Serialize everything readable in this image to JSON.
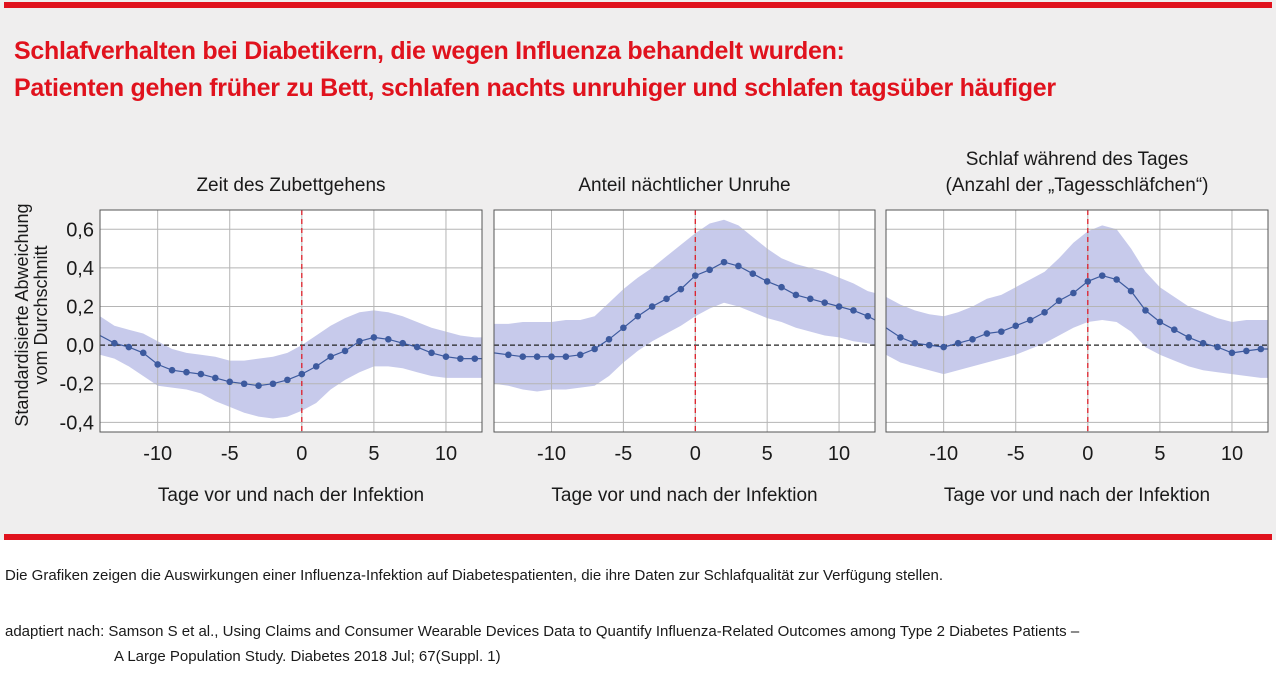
{
  "title": {
    "line1": "Schlafverhalten bei Diabetikern, die wegen Influenza behandelt wurden:",
    "line2": "Patienten gehen früher zu Bett, schlafen nachts unruhiger und schlafen tagsüber häufiger"
  },
  "ylabel": {
    "line1": "Standardisierte Abweichung",
    "line2": "vom Durchschnitt"
  },
  "caption": "Die Grafiken zeigen die Auswirkungen einer Influenza-Infektion auf Diabetespatienten, die ihre Daten zur Schlafqualität zur Verfügung stellen.",
  "source": {
    "line1": "adaptiert nach: Samson S et al., Using Claims and Consumer Wearable Devices Data to Quantify Influenza-Related Outcomes among Type 2 Diabetes Patients –",
    "line2": "A Large Population Study. Diabetes 2018 Jul; 67(Suppl. 1)"
  },
  "colors": {
    "accent": "#e0121d",
    "line": "#3d5a9e",
    "band": "#c4c7ea",
    "background": "#efeeee"
  },
  "chart_data": [
    {
      "type": "line",
      "title": [
        "Zeit des Zubettgehens"
      ],
      "xlabel": "Tage vor und nach der Infektion",
      "ylabel": "Standardisierte Abweichung vom Durchschnitt",
      "xlim": [
        -14,
        12.5
      ],
      "ylim": [
        -0.45,
        0.7
      ],
      "xticks": [
        -10,
        -5,
        0,
        5,
        10
      ],
      "yticks": [
        0.6,
        0.4,
        0.2,
        0.0,
        -0.2,
        -0.4
      ],
      "ytick_labels": [
        "0,6",
        "0,4",
        "0,2",
        "0,0",
        "-0,2",
        "-0,4"
      ],
      "grid": true,
      "reference_lines": {
        "y": 0,
        "x": 0
      },
      "x": [
        -14,
        -13,
        -12,
        -11,
        -10,
        -9,
        -8,
        -7,
        -6,
        -5,
        -4,
        -3,
        -2,
        -1,
        0,
        1,
        2,
        3,
        4,
        5,
        6,
        7,
        8,
        9,
        10,
        11,
        12,
        12.5
      ],
      "values": [
        0.05,
        0.01,
        -0.01,
        -0.04,
        -0.1,
        -0.13,
        -0.14,
        -0.15,
        -0.17,
        -0.19,
        -0.2,
        -0.21,
        -0.2,
        -0.18,
        -0.15,
        -0.11,
        -0.06,
        -0.03,
        0.02,
        0.04,
        0.03,
        0.01,
        -0.01,
        -0.04,
        -0.06,
        -0.07,
        -0.07,
        -0.07
      ],
      "upper": [
        0.15,
        0.1,
        0.08,
        0.06,
        0.02,
        -0.02,
        -0.04,
        -0.05,
        -0.06,
        -0.08,
        -0.08,
        -0.07,
        -0.06,
        -0.04,
        0.0,
        0.05,
        0.1,
        0.14,
        0.17,
        0.18,
        0.17,
        0.15,
        0.12,
        0.09,
        0.07,
        0.05,
        0.04,
        0.04
      ],
      "lower": [
        -0.05,
        -0.07,
        -0.11,
        -0.16,
        -0.21,
        -0.22,
        -0.23,
        -0.25,
        -0.29,
        -0.32,
        -0.35,
        -0.37,
        -0.38,
        -0.37,
        -0.34,
        -0.3,
        -0.23,
        -0.18,
        -0.14,
        -0.11,
        -0.11,
        -0.12,
        -0.14,
        -0.16,
        -0.17,
        -0.17,
        -0.17,
        -0.17
      ]
    },
    {
      "type": "line",
      "title": [
        "Anteil nächtlicher Unruhe"
      ],
      "xlabel": "Tage vor und nach der Infektion",
      "xlim": [
        -14,
        12.5
      ],
      "ylim": [
        -0.45,
        0.7
      ],
      "xticks": [
        -10,
        -5,
        0,
        5,
        10
      ],
      "grid": true,
      "reference_lines": {
        "y": 0,
        "x": 0
      },
      "x": [
        -14,
        -13,
        -12,
        -11,
        -10,
        -9,
        -8,
        -7,
        -6,
        -5,
        -4,
        -3,
        -2,
        -1,
        0,
        1,
        2,
        3,
        4,
        5,
        6,
        7,
        8,
        9,
        10,
        11,
        12,
        12.5
      ],
      "values": [
        -0.04,
        -0.05,
        -0.06,
        -0.06,
        -0.06,
        -0.06,
        -0.05,
        -0.02,
        0.03,
        0.09,
        0.15,
        0.2,
        0.24,
        0.29,
        0.36,
        0.39,
        0.43,
        0.41,
        0.37,
        0.33,
        0.3,
        0.26,
        0.24,
        0.22,
        0.2,
        0.18,
        0.15,
        0.13
      ],
      "upper": [
        0.11,
        0.11,
        0.12,
        0.12,
        0.12,
        0.13,
        0.13,
        0.15,
        0.22,
        0.29,
        0.35,
        0.4,
        0.46,
        0.52,
        0.58,
        0.63,
        0.65,
        0.62,
        0.56,
        0.5,
        0.45,
        0.42,
        0.4,
        0.38,
        0.35,
        0.32,
        0.28,
        0.27
      ],
      "lower": [
        -0.2,
        -0.21,
        -0.23,
        -0.24,
        -0.23,
        -0.23,
        -0.22,
        -0.21,
        -0.16,
        -0.09,
        -0.03,
        0.02,
        0.06,
        0.1,
        0.15,
        0.19,
        0.22,
        0.2,
        0.17,
        0.14,
        0.12,
        0.09,
        0.07,
        0.05,
        0.04,
        0.02,
        0.01,
        0.0
      ]
    },
    {
      "type": "line",
      "title": [
        "Schlaf während des Tages",
        "(Anzahl der „Tagesschläfchen“)"
      ],
      "xlabel": "Tage vor und nach der Infektion",
      "xlim": [
        -14,
        12.5
      ],
      "ylim": [
        -0.45,
        0.7
      ],
      "xticks": [
        -10,
        -5,
        0,
        5,
        10
      ],
      "grid": true,
      "reference_lines": {
        "y": 0,
        "x": 0
      },
      "x": [
        -14,
        -13,
        -12,
        -11,
        -10,
        -9,
        -8,
        -7,
        -6,
        -5,
        -4,
        -3,
        -2,
        -1,
        0,
        1,
        2,
        3,
        4,
        5,
        6,
        7,
        8,
        9,
        10,
        11,
        12,
        12.5
      ],
      "values": [
        0.09,
        0.04,
        0.01,
        0.0,
        -0.01,
        0.01,
        0.03,
        0.06,
        0.07,
        0.1,
        0.13,
        0.17,
        0.23,
        0.27,
        0.33,
        0.36,
        0.34,
        0.28,
        0.18,
        0.12,
        0.08,
        0.04,
        0.01,
        -0.01,
        -0.04,
        -0.03,
        -0.02,
        -0.02
      ],
      "upper": [
        0.25,
        0.21,
        0.18,
        0.16,
        0.15,
        0.17,
        0.2,
        0.24,
        0.26,
        0.3,
        0.34,
        0.38,
        0.45,
        0.53,
        0.59,
        0.62,
        0.6,
        0.5,
        0.38,
        0.3,
        0.25,
        0.2,
        0.17,
        0.14,
        0.12,
        0.13,
        0.13,
        0.13
      ],
      "lower": [
        -0.05,
        -0.09,
        -0.11,
        -0.13,
        -0.15,
        -0.13,
        -0.11,
        -0.09,
        -0.07,
        -0.05,
        -0.02,
        0.01,
        0.05,
        0.09,
        0.12,
        0.13,
        0.12,
        0.07,
        -0.01,
        -0.05,
        -0.08,
        -0.11,
        -0.13,
        -0.14,
        -0.15,
        -0.16,
        -0.17,
        -0.17
      ]
    }
  ]
}
